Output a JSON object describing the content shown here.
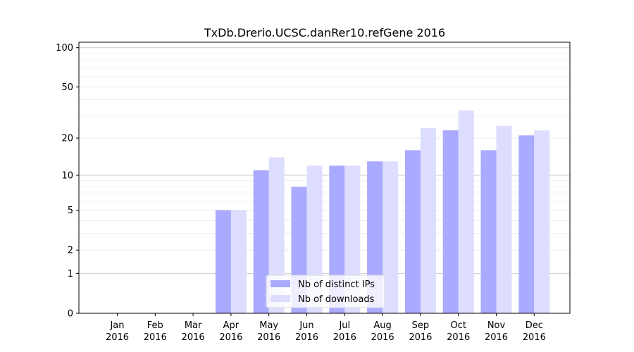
{
  "chart_data": {
    "type": "bar",
    "title": "TxDb.Drerio.UCSC.danRer10.refGene 2016",
    "xlabel": "",
    "ylabel": "",
    "yscale": "log1p",
    "ylim": [
      0,
      110
    ],
    "y_ticks": [
      0,
      1,
      2,
      5,
      10,
      20,
      50,
      100
    ],
    "grid": "horizontal",
    "legend_position": "bottom-center",
    "categories": [
      [
        "Jan",
        "2016"
      ],
      [
        "Feb",
        "2016"
      ],
      [
        "Mar",
        "2016"
      ],
      [
        "Apr",
        "2016"
      ],
      [
        "May",
        "2016"
      ],
      [
        "Jun",
        "2016"
      ],
      [
        "Jul",
        "2016"
      ],
      [
        "Aug",
        "2016"
      ],
      [
        "Sep",
        "2016"
      ],
      [
        "Oct",
        "2016"
      ],
      [
        "Nov",
        "2016"
      ],
      [
        "Dec",
        "2016"
      ]
    ],
    "series": [
      {
        "name": "Nb of distinct IPs",
        "color": "#aaaaff",
        "values": [
          0,
          0,
          0,
          5,
          11,
          8,
          12,
          13,
          16,
          23,
          16,
          21
        ]
      },
      {
        "name": "Nb of downloads",
        "color": "#ddddff",
        "values": [
          0,
          0,
          0,
          5,
          14,
          12,
          12,
          13,
          24,
          33,
          25,
          23
        ]
      }
    ]
  }
}
